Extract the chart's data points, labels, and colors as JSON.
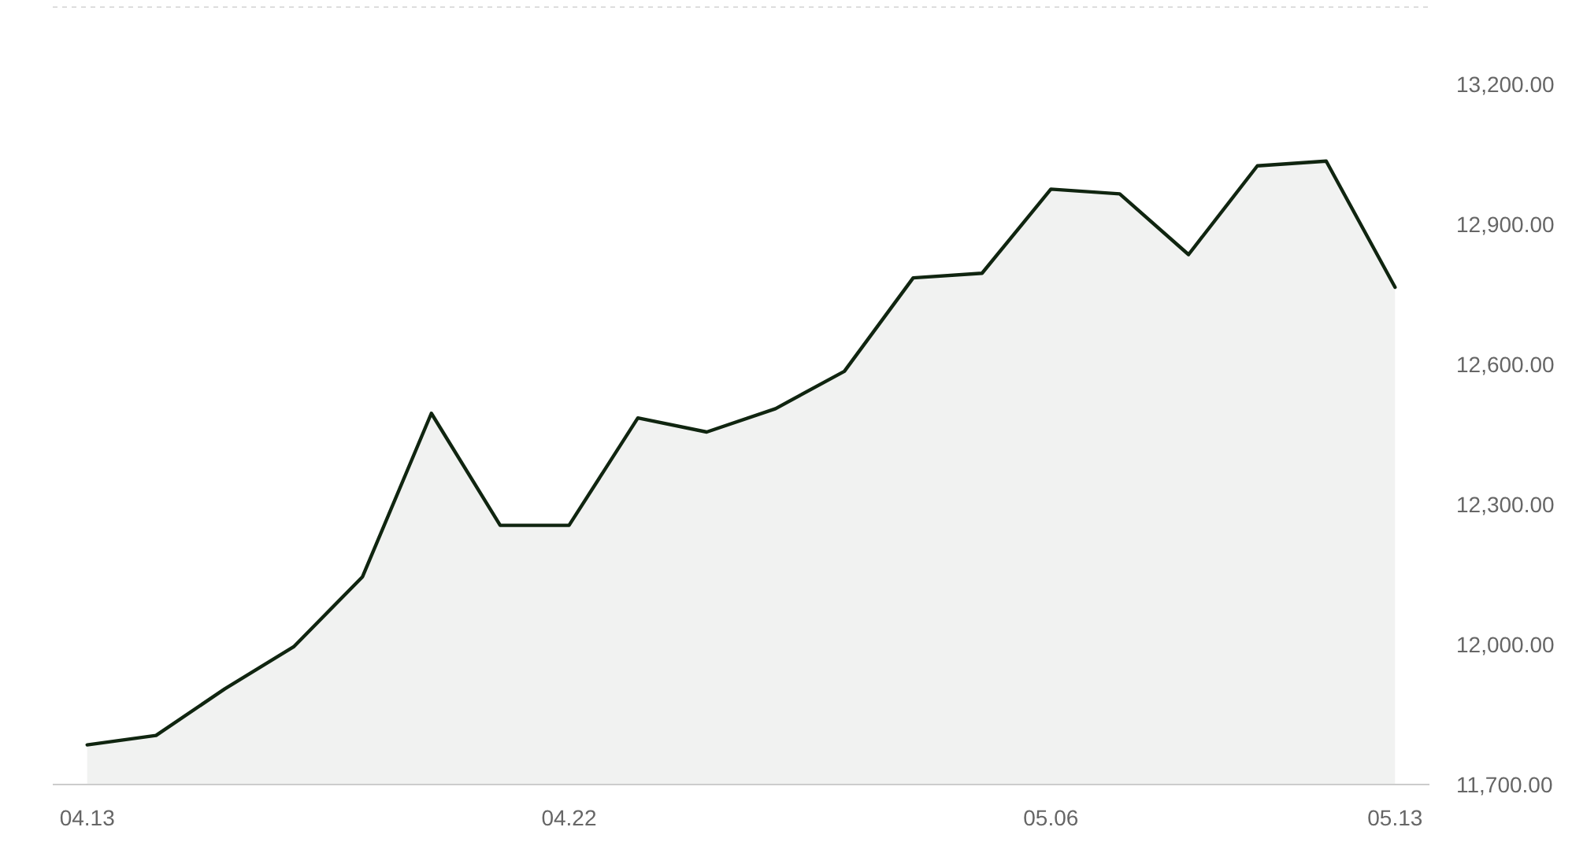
{
  "chart_data": {
    "type": "area",
    "categories": [
      "04.13",
      null,
      null,
      null,
      null,
      null,
      null,
      "04.22",
      null,
      null,
      null,
      null,
      null,
      null,
      "05.06",
      null,
      null,
      null,
      null,
      "05.13"
    ],
    "series": [
      {
        "color": "#102510",
        "values": [
          11785,
          11805,
          11905,
          11995,
          12145,
          12495,
          12255,
          12255,
          12485,
          12455,
          12505,
          12585,
          12785,
          12795,
          12975,
          12965,
          12835,
          13025,
          13035,
          12765
        ]
      }
    ],
    "ylim": [
      11700,
      13365
    ],
    "yticks": [
      {
        "value": 11700,
        "label": "11,700.00"
      },
      {
        "value": 12000,
        "label": "12,000.00"
      },
      {
        "value": 12300,
        "label": "12,300.00"
      },
      {
        "value": 12600,
        "label": "12,600.00"
      },
      {
        "value": 12900,
        "label": "12,900.00"
      },
      {
        "value": 13200,
        "label": "13,200.00"
      }
    ]
  }
}
